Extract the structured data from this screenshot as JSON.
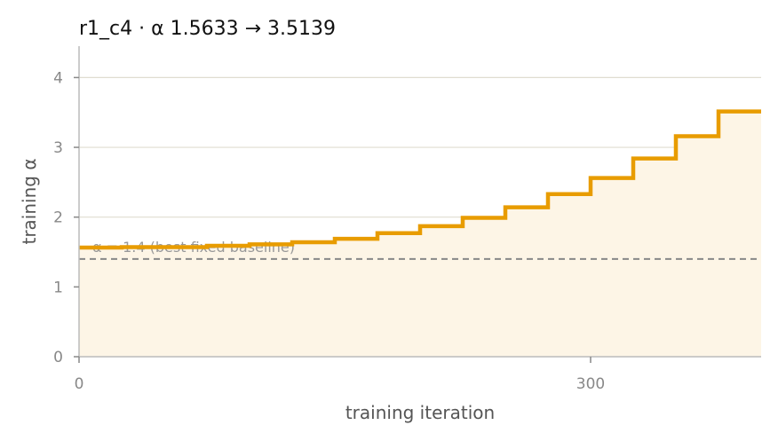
{
  "chart_data": {
    "type": "line",
    "step": true,
    "title": "r1_c4   ·   α 1.5633 → 3.5139",
    "xlabel": "training iteration",
    "ylabel": "training α",
    "xlim": [
      0,
      400
    ],
    "ylim": [
      0,
      4.45
    ],
    "x_ticks": [
      {
        "value": 0,
        "label": "0"
      },
      {
        "value": 300,
        "label": "300"
      }
    ],
    "y_ticks": [
      {
        "value": 0,
        "label": "0"
      },
      {
        "value": 1,
        "label": "1"
      },
      {
        "value": 2,
        "label": "2"
      },
      {
        "value": 3,
        "label": "3"
      },
      {
        "value": 4,
        "label": "4"
      }
    ],
    "grid": "horizontal",
    "series": [
      {
        "color": "#e89c00",
        "fill": "#fdf5e6",
        "steps": [
          {
            "x": 0,
            "y": 1.5633
          },
          {
            "x": 25,
            "y": 1.57
          },
          {
            "x": 75,
            "y": 1.59
          },
          {
            "x": 100,
            "y": 1.61
          },
          {
            "x": 125,
            "y": 1.64
          },
          {
            "x": 150,
            "y": 1.69
          },
          {
            "x": 175,
            "y": 1.77
          },
          {
            "x": 200,
            "y": 1.87
          },
          {
            "x": 225,
            "y": 1.99
          },
          {
            "x": 250,
            "y": 2.14
          },
          {
            "x": 275,
            "y": 2.33
          },
          {
            "x": 300,
            "y": 2.56
          },
          {
            "x": 325,
            "y": 2.84
          },
          {
            "x": 350,
            "y": 3.16
          },
          {
            "x": 375,
            "y": 3.5139
          }
        ],
        "x_end": 400
      }
    ],
    "reference_line": {
      "y": 1.4,
      "label": "α = 1.4 (best fixed baseline)",
      "color": "#888888"
    },
    "colors": {
      "axis": "#bbbbbb",
      "grid": "#e0ddd0"
    }
  }
}
